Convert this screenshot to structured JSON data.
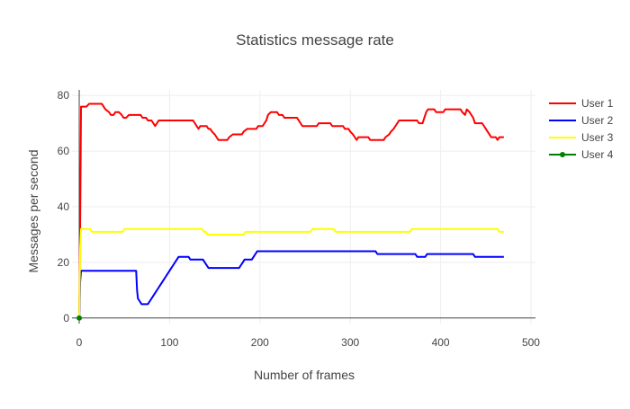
{
  "chart_data": {
    "type": "line",
    "title": "Statistics message rate",
    "xlabel": "Number of frames",
    "ylabel": "Messages per second",
    "xlim": [
      -8,
      505
    ],
    "ylim": [
      -2,
      82
    ],
    "xticks": [
      0,
      100,
      200,
      300,
      400,
      500
    ],
    "yticks": [
      0,
      20,
      40,
      60,
      80
    ],
    "grid": true,
    "legend_position": "right",
    "series": [
      {
        "name": "User 1",
        "color": "#ff0000",
        "markers": false,
        "points": [
          [
            0,
            0
          ],
          [
            1,
            33
          ],
          [
            2,
            76
          ],
          [
            8,
            76
          ],
          [
            11,
            77
          ],
          [
            25,
            77
          ],
          [
            27,
            76
          ],
          [
            29,
            75
          ],
          [
            33,
            74
          ],
          [
            35,
            73
          ],
          [
            38,
            73
          ],
          [
            40,
            74
          ],
          [
            44,
            74
          ],
          [
            47,
            73
          ],
          [
            49,
            72
          ],
          [
            52,
            72
          ],
          [
            55,
            73
          ],
          [
            68,
            73
          ],
          [
            70,
            72
          ],
          [
            74,
            72
          ],
          [
            76,
            71
          ],
          [
            80,
            71
          ],
          [
            82,
            70
          ],
          [
            84,
            69
          ],
          [
            86,
            70
          ],
          [
            88,
            71
          ],
          [
            100,
            71
          ],
          [
            126,
            71
          ],
          [
            128,
            70
          ],
          [
            130,
            69
          ],
          [
            132,
            68
          ],
          [
            134,
            69
          ],
          [
            141,
            69
          ],
          [
            143,
            68
          ],
          [
            145,
            68
          ],
          [
            147,
            67
          ],
          [
            150,
            66
          ],
          [
            152,
            65
          ],
          [
            154,
            64
          ],
          [
            164,
            64
          ],
          [
            166,
            65
          ],
          [
            170,
            66
          ],
          [
            180,
            66
          ],
          [
            182,
            67
          ],
          [
            186,
            68
          ],
          [
            196,
            68
          ],
          [
            198,
            69
          ],
          [
            203,
            69
          ],
          [
            205,
            70
          ],
          [
            207,
            71
          ],
          [
            209,
            73
          ],
          [
            212,
            74
          ],
          [
            219,
            74
          ],
          [
            221,
            73
          ],
          [
            225,
            73
          ],
          [
            227,
            72
          ],
          [
            241,
            72
          ],
          [
            243,
            71
          ],
          [
            245,
            70
          ],
          [
            247,
            69
          ],
          [
            263,
            69
          ],
          [
            265,
            70
          ],
          [
            278,
            70
          ],
          [
            280,
            69
          ],
          [
            292,
            69
          ],
          [
            294,
            68
          ],
          [
            298,
            68
          ],
          [
            300,
            67
          ],
          [
            303,
            66
          ],
          [
            305,
            65
          ],
          [
            307,
            64
          ],
          [
            309,
            65
          ],
          [
            320,
            65
          ],
          [
            322,
            64
          ],
          [
            337,
            64
          ],
          [
            339,
            65
          ],
          [
            343,
            66
          ],
          [
            345,
            67
          ],
          [
            348,
            68
          ],
          [
            350,
            69
          ],
          [
            352,
            70
          ],
          [
            354,
            71
          ],
          [
            374,
            71
          ],
          [
            376,
            70
          ],
          [
            380,
            70
          ],
          [
            382,
            72
          ],
          [
            384,
            74
          ],
          [
            386,
            75
          ],
          [
            393,
            75
          ],
          [
            395,
            74
          ],
          [
            403,
            74
          ],
          [
            405,
            75
          ],
          [
            422,
            75
          ],
          [
            424,
            74
          ],
          [
            427,
            73
          ],
          [
            429,
            75
          ],
          [
            432,
            74
          ],
          [
            434,
            73
          ],
          [
            436,
            72
          ],
          [
            438,
            70
          ],
          [
            446,
            70
          ],
          [
            448,
            69
          ],
          [
            450,
            68
          ],
          [
            452,
            67
          ],
          [
            454,
            66
          ],
          [
            456,
            65
          ],
          [
            461,
            65
          ],
          [
            463,
            64
          ],
          [
            465,
            65
          ],
          [
            470,
            65
          ]
        ]
      },
      {
        "name": "User 2",
        "color": "#0000ff",
        "markers": false,
        "points": [
          [
            0,
            0
          ],
          [
            1,
            13
          ],
          [
            2,
            17
          ],
          [
            63,
            17
          ],
          [
            64,
            10
          ],
          [
            65,
            7
          ],
          [
            67,
            6
          ],
          [
            69,
            5
          ],
          [
            76,
            5
          ],
          [
            78,
            6
          ],
          [
            80,
            7
          ],
          [
            82,
            8
          ],
          [
            84,
            9
          ],
          [
            86,
            10
          ],
          [
            88,
            11
          ],
          [
            90,
            12
          ],
          [
            92,
            13
          ],
          [
            94,
            14
          ],
          [
            96,
            15
          ],
          [
            98,
            16
          ],
          [
            100,
            17
          ],
          [
            102,
            18
          ],
          [
            104,
            19
          ],
          [
            106,
            20
          ],
          [
            108,
            21
          ],
          [
            110,
            22
          ],
          [
            121,
            22
          ],
          [
            123,
            21
          ],
          [
            137,
            21
          ],
          [
            139,
            20
          ],
          [
            141,
            19
          ],
          [
            143,
            18
          ],
          [
            177,
            18
          ],
          [
            179,
            19
          ],
          [
            181,
            20
          ],
          [
            183,
            21
          ],
          [
            191,
            21
          ],
          [
            193,
            22
          ],
          [
            195,
            23
          ],
          [
            197,
            24
          ],
          [
            328,
            24
          ],
          [
            330,
            23
          ],
          [
            372,
            23
          ],
          [
            374,
            22
          ],
          [
            383,
            22
          ],
          [
            385,
            23
          ],
          [
            436,
            23
          ],
          [
            438,
            22
          ],
          [
            470,
            22
          ]
        ]
      },
      {
        "name": "User 3",
        "color": "#ffff00",
        "markers": false,
        "points": [
          [
            0,
            0
          ],
          [
            1,
            25
          ],
          [
            2,
            32
          ],
          [
            12,
            32
          ],
          [
            14,
            31
          ],
          [
            48,
            31
          ],
          [
            50,
            32
          ],
          [
            117,
            32
          ],
          [
            136,
            32
          ],
          [
            138,
            31
          ],
          [
            140,
            31
          ],
          [
            142,
            30
          ],
          [
            182,
            30
          ],
          [
            184,
            31
          ],
          [
            256,
            31
          ],
          [
            258,
            32
          ],
          [
            282,
            32
          ],
          [
            284,
            31
          ],
          [
            366,
            31
          ],
          [
            368,
            32
          ],
          [
            463,
            32
          ],
          [
            465,
            31
          ],
          [
            470,
            31
          ]
        ]
      },
      {
        "name": "User 4",
        "color": "#008000",
        "markers": true,
        "points": [
          [
            0,
            0
          ]
        ]
      }
    ]
  }
}
